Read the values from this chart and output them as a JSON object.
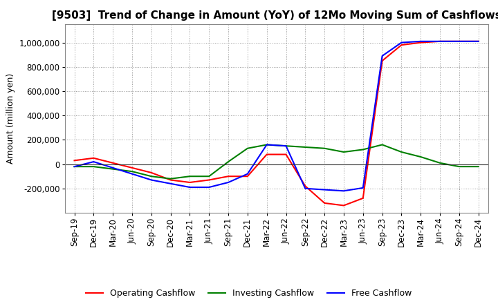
{
  "title": "[9503]  Trend of Change in Amount (YoY) of 12Mo Moving Sum of Cashflows",
  "ylabel": "Amount (million yen)",
  "x_labels": [
    "Sep-19",
    "Dec-19",
    "Mar-20",
    "Jun-20",
    "Sep-20",
    "Dec-20",
    "Mar-21",
    "Jun-21",
    "Sep-21",
    "Dec-21",
    "Mar-22",
    "Jun-22",
    "Sep-22",
    "Dec-22",
    "Mar-23",
    "Jun-23",
    "Sep-23",
    "Dec-23",
    "Mar-24",
    "Jun-24",
    "Sep-24",
    "Dec-24"
  ],
  "operating_cashflow": [
    30000,
    50000,
    10000,
    -30000,
    -70000,
    -130000,
    -150000,
    -130000,
    -100000,
    -100000,
    80000,
    80000,
    -180000,
    -320000,
    -340000,
    -280000,
    850000,
    980000,
    1000000,
    1010000,
    1010000,
    1010000
  ],
  "investing_cashflow": [
    -20000,
    -20000,
    -40000,
    -60000,
    -100000,
    -120000,
    -100000,
    -100000,
    20000,
    130000,
    160000,
    150000,
    140000,
    130000,
    100000,
    120000,
    160000,
    100000,
    60000,
    10000,
    -20000,
    -20000
  ],
  "free_cashflow": [
    -20000,
    20000,
    -30000,
    -80000,
    -130000,
    -160000,
    -190000,
    -190000,
    -150000,
    -80000,
    160000,
    150000,
    -200000,
    -210000,
    -220000,
    -195000,
    890000,
    1000000,
    1010000,
    1010000,
    1010000,
    1010000
  ],
  "ylim": [
    -400000,
    1150000
  ],
  "yticks": [
    -200000,
    0,
    200000,
    400000,
    600000,
    800000,
    1000000
  ],
  "operating_color": "#ff0000",
  "investing_color": "#008000",
  "free_color": "#0000ff",
  "background_color": "#ffffff",
  "grid_color": "#999999",
  "title_fontsize": 11,
  "axis_label_fontsize": 9,
  "tick_fontsize": 8.5,
  "legend_fontsize": 9
}
